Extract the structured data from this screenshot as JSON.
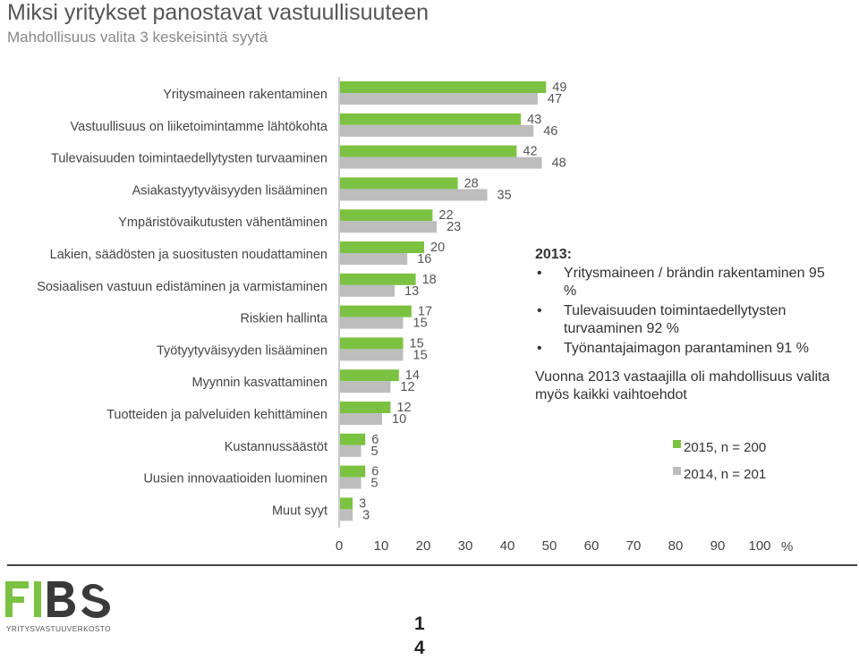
{
  "header": {
    "title": "Miksi yritykset panostavat vastuullisuuteen",
    "subtitle": "Mahdollisuus valita 3 keskeisintä syytä"
  },
  "chart_data": {
    "type": "bar",
    "orientation": "horizontal",
    "categories": [
      "Yritysmaineen rakentaminen",
      "Vastuullisuus on liiketoimintamme lähtökohta",
      "Tulevaisuuden toimintaedellytysten turvaaminen",
      "Asiakastyytyväisyyden lisääminen",
      "Ympäristövaikutusten vähentäminen",
      "Lakien, säädösten ja suositusten noudattaminen",
      "Sosiaalisen vastuun edistäminen ja varmistaminen",
      "Riskien hallinta",
      "Työtyytyväisyyden lisääminen",
      "Myynnin kasvattaminen",
      "Tuotteiden ja palveluiden kehittäminen",
      "Kustannussäästöt",
      "Uusien innovaatioiden luominen",
      "Muut syyt"
    ],
    "series": [
      {
        "name": "2015, n = 200",
        "color": "#7cc242",
        "values": [
          49,
          43,
          42,
          28,
          22,
          20,
          18,
          17,
          15,
          14,
          12,
          6,
          6,
          3
        ]
      },
      {
        "name": "2014, n = 201",
        "color": "#bdbdbd",
        "values": [
          47,
          46,
          48,
          35,
          23,
          16,
          13,
          15,
          15,
          12,
          10,
          5,
          5,
          3
        ]
      }
    ],
    "xlim": [
      0,
      100
    ],
    "xticks": [
      "0",
      "10",
      "20",
      "30",
      "40",
      "50",
      "60",
      "70",
      "80",
      "90",
      "100"
    ],
    "xunit": "%",
    "legend_position": "right",
    "grid": false
  },
  "notes": {
    "year_label": "2013:",
    "items": [
      "Yritysmaineen / brändin rakentaminen 95 %",
      "Tulevaisuuden toimintaedellytysten turvaaminen 92 %",
      "Työnantajaimagon parantaminen 91 %"
    ],
    "footnote": "Vuonna 2013 vastaajilla oli mahdollisuus valita myös kaikki vaihtoehdot"
  },
  "logo": {
    "brand": "FIBS",
    "tagline": "YRITYSVASTUUVERKOSTO",
    "colors": [
      "#7cc242",
      "#3a3a3a"
    ]
  },
  "page": {
    "number_line1": "1",
    "number_line2": "4"
  }
}
